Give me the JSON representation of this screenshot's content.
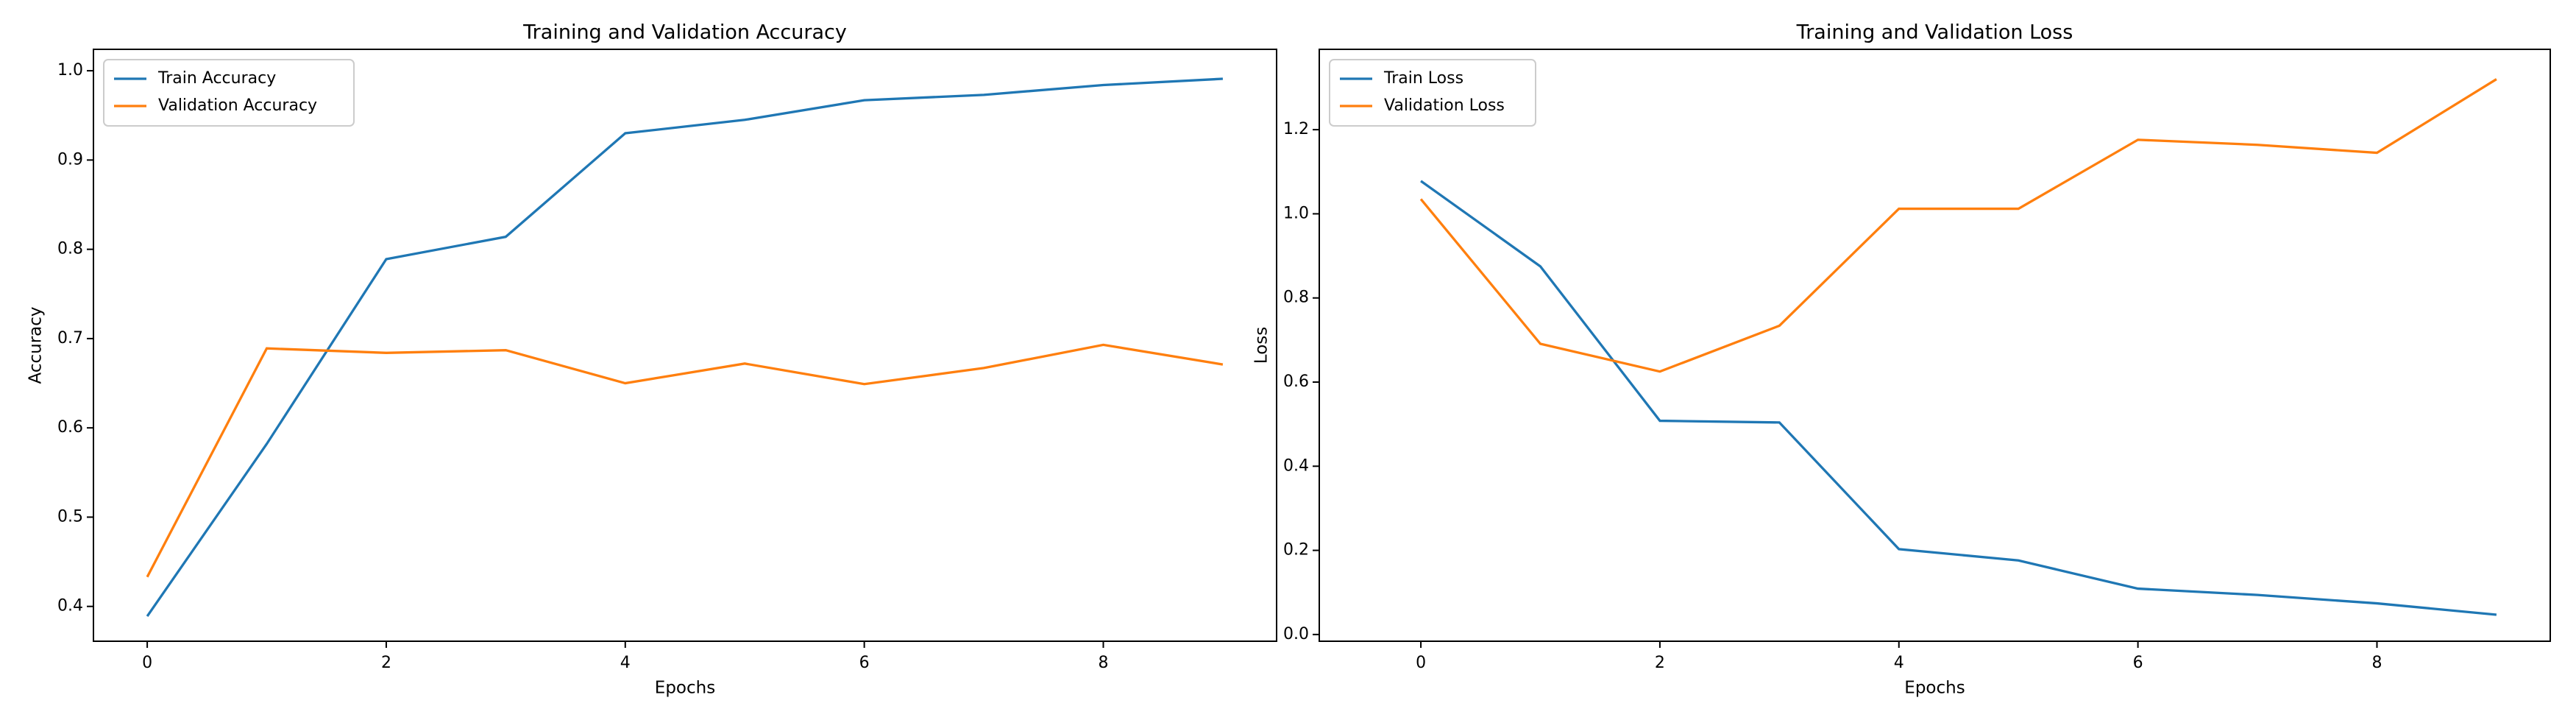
{
  "chart_data": [
    {
      "type": "line",
      "title": "Training and Validation Accuracy",
      "x_label": "Epochs",
      "y_label": "Accuracy",
      "x": [
        0,
        1,
        2,
        3,
        4,
        5,
        6,
        7,
        8,
        9
      ],
      "series": [
        {
          "name": "Train Accuracy",
          "color": "#1f77b4",
          "values": [
            0.389,
            0.582,
            0.789,
            0.814,
            0.93,
            0.945,
            0.967,
            0.973,
            0.984,
            0.991
          ]
        },
        {
          "name": "Validation Accuracy",
          "color": "#ff7f0e",
          "values": [
            0.433,
            0.689,
            0.684,
            0.687,
            0.65,
            0.672,
            0.649,
            0.667,
            0.693,
            0.671
          ]
        }
      ],
      "xlim": [
        -0.45,
        9.45
      ],
      "ylim": [
        0.361,
        1.024
      ],
      "xticks": [
        0,
        2,
        4,
        6,
        8
      ],
      "yticks": [
        0.4,
        0.5,
        0.6,
        0.7,
        0.8,
        0.9,
        {
          "value": 1,
          "label": "1.0"
        }
      ],
      "legend": "upper left"
    },
    {
      "type": "line",
      "title": "Training and Validation Loss",
      "x_label": "Epochs",
      "y_label": "Loss",
      "x": [
        0,
        1,
        2,
        3,
        4,
        5,
        6,
        7,
        8,
        9
      ],
      "series": [
        {
          "name": "Train Loss",
          "color": "#1f77b4",
          "values": [
            1.078,
            0.875,
            0.508,
            0.504,
            0.203,
            0.176,
            0.109,
            0.094,
            0.074,
            0.047
          ]
        },
        {
          "name": "Validation Loss",
          "color": "#ff7f0e",
          "values": [
            1.035,
            0.691,
            0.625,
            0.734,
            1.012,
            1.012,
            1.176,
            1.164,
            1.145,
            1.32
          ]
        }
      ],
      "xlim": [
        -0.85,
        9.45
      ],
      "ylim": [
        -0.016,
        1.391
      ],
      "xticks": [
        0,
        2,
        4,
        6,
        8
      ],
      "yticks": [
        {
          "value": 0,
          "label": "0.0"
        },
        0.2,
        0.4,
        0.6,
        0.8,
        {
          "value": 1,
          "label": "1.0"
        },
        1.2
      ],
      "legend": "upper left"
    }
  ]
}
